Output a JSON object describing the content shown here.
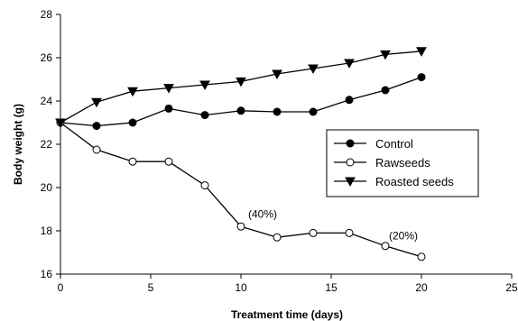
{
  "chart_data": {
    "type": "line",
    "title": "",
    "xlabel": "Treatment time (days)",
    "ylabel": "Body weight (g)",
    "xlim": [
      0,
      25
    ],
    "ylim": [
      16,
      28
    ],
    "xticks": [
      0,
      5,
      10,
      15,
      20,
      25
    ],
    "yticks": [
      16,
      18,
      20,
      22,
      24,
      26,
      28
    ],
    "grid": false,
    "legend_position": "center-right",
    "series": [
      {
        "name": "Control",
        "marker": "filled-circle",
        "x": [
          0,
          2,
          4,
          6,
          8,
          10,
          12,
          14,
          16,
          18,
          20
        ],
        "y": [
          23.0,
          22.85,
          23.0,
          23.65,
          23.35,
          23.55,
          23.5,
          23.5,
          24.05,
          24.5,
          25.1
        ]
      },
      {
        "name": "Rawseeds",
        "marker": "open-circle",
        "x": [
          0,
          2,
          4,
          6,
          8,
          10,
          12,
          14,
          16,
          18,
          20
        ],
        "y": [
          23.0,
          21.75,
          21.2,
          21.2,
          20.1,
          18.2,
          17.7,
          17.9,
          17.9,
          17.3,
          16.8
        ]
      },
      {
        "name": "Roasted seeds",
        "marker": "filled-triangle-down",
        "x": [
          0,
          2,
          4,
          6,
          8,
          10,
          12,
          14,
          16,
          18,
          20
        ],
        "y": [
          23.0,
          23.95,
          24.45,
          24.6,
          24.75,
          24.9,
          25.25,
          25.5,
          25.75,
          26.15,
          26.3
        ]
      }
    ],
    "annotations": [
      {
        "text": "(40%)",
        "x": 10.4,
        "y": 18.6
      },
      {
        "text": "(20%)",
        "x": 18.2,
        "y": 17.6
      }
    ]
  }
}
